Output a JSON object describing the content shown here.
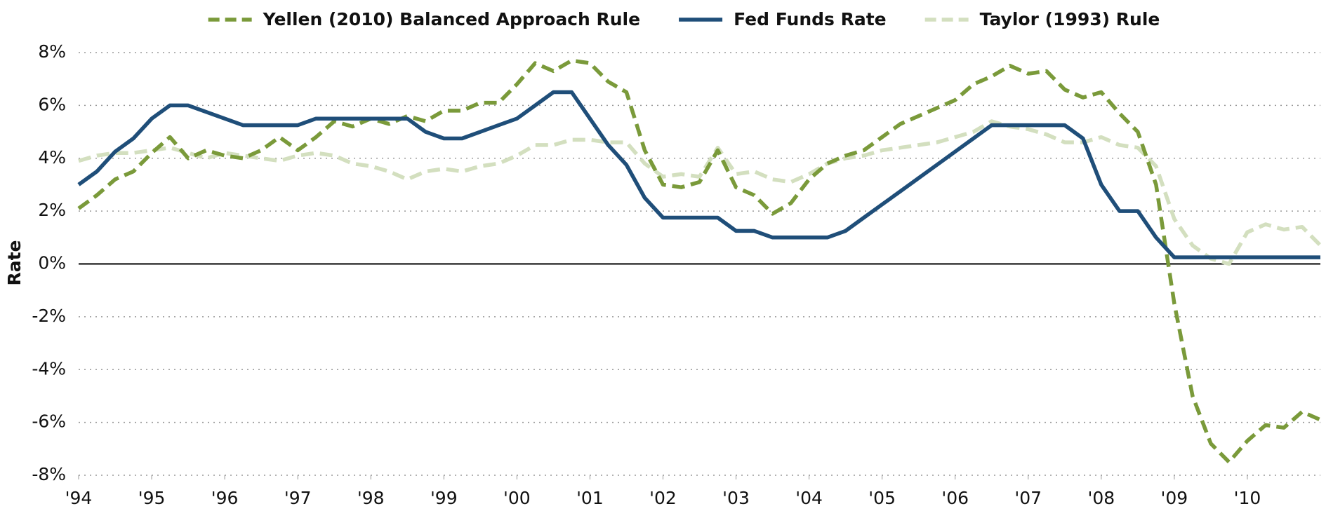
{
  "chart_data": {
    "type": "line",
    "ylabel": "Rate",
    "x": [
      1994,
      1994.25,
      1994.5,
      1994.75,
      1995,
      1995.25,
      1995.5,
      1995.75,
      1996,
      1996.25,
      1996.5,
      1996.75,
      1997,
      1997.25,
      1997.5,
      1997.75,
      1998,
      1998.25,
      1998.5,
      1998.75,
      1999,
      1999.25,
      1999.5,
      1999.75,
      2000,
      2000.25,
      2000.5,
      2000.75,
      2001,
      2001.25,
      2001.5,
      2001.75,
      2002,
      2002.25,
      2002.5,
      2002.75,
      2003,
      2003.25,
      2003.5,
      2003.75,
      2004,
      2004.25,
      2004.5,
      2004.75,
      2005,
      2005.25,
      2005.5,
      2005.75,
      2006,
      2006.25,
      2006.5,
      2006.75,
      2007,
      2007.25,
      2007.5,
      2007.75,
      2008,
      2008.25,
      2008.5,
      2008.75,
      2009,
      2009.25,
      2009.5,
      2009.75,
      2010,
      2010.25,
      2010.5,
      2010.75,
      2011
    ],
    "series": [
      {
        "name": "Yellen (2010) Balanced Approach Rule",
        "color": "#7a9a3a",
        "style": "dashed",
        "values": [
          2.1,
          2.6,
          3.2,
          3.5,
          4.2,
          4.8,
          4.0,
          4.3,
          4.1,
          4.0,
          4.3,
          4.8,
          4.3,
          4.8,
          5.4,
          5.2,
          5.5,
          5.3,
          5.6,
          5.4,
          5.8,
          5.8,
          6.1,
          6.1,
          6.8,
          7.6,
          7.3,
          7.7,
          7.6,
          6.9,
          6.5,
          4.3,
          3.0,
          2.9,
          3.1,
          4.3,
          2.9,
          2.6,
          1.9,
          2.3,
          3.2,
          3.8,
          4.1,
          4.3,
          4.8,
          5.3,
          5.6,
          5.9,
          6.2,
          6.8,
          7.1,
          7.5,
          7.2,
          7.3,
          6.6,
          6.3,
          6.5,
          5.7,
          5.0,
          3.0,
          -1.5,
          -5.0,
          -6.8,
          -7.5,
          -6.7,
          -6.1,
          -6.2,
          -5.6,
          -5.9
        ]
      },
      {
        "name": "Fed Funds Rate",
        "color": "#1f4e79",
        "style": "solid",
        "values": [
          3.0,
          3.5,
          4.25,
          4.75,
          5.5,
          6.0,
          6.0,
          5.75,
          5.5,
          5.25,
          5.25,
          5.25,
          5.25,
          5.5,
          5.5,
          5.5,
          5.5,
          5.5,
          5.5,
          5.0,
          4.75,
          4.75,
          5.0,
          5.25,
          5.5,
          6.0,
          6.5,
          6.5,
          5.5,
          4.5,
          3.75,
          2.5,
          1.75,
          1.75,
          1.75,
          1.75,
          1.25,
          1.25,
          1.0,
          1.0,
          1.0,
          1.0,
          1.25,
          1.75,
          2.25,
          2.75,
          3.25,
          3.75,
          4.25,
          4.75,
          5.25,
          5.25,
          5.25,
          5.25,
          5.25,
          4.75,
          3.0,
          2.0,
          2.0,
          1.0,
          0.25,
          0.25,
          0.25,
          0.25,
          0.25,
          0.25,
          0.25,
          0.25,
          0.25
        ]
      },
      {
        "name": "Taylor (1993) Rule",
        "color": "#d3dfbf",
        "style": "dashed",
        "values": [
          3.9,
          4.1,
          4.2,
          4.2,
          4.3,
          4.4,
          4.2,
          4.0,
          4.2,
          4.1,
          4.0,
          3.9,
          4.1,
          4.2,
          4.1,
          3.8,
          3.7,
          3.5,
          3.2,
          3.5,
          3.6,
          3.5,
          3.7,
          3.8,
          4.1,
          4.5,
          4.5,
          4.7,
          4.7,
          4.6,
          4.6,
          3.8,
          3.3,
          3.4,
          3.3,
          4.4,
          3.4,
          3.5,
          3.2,
          3.1,
          3.4,
          3.8,
          4.0,
          4.1,
          4.3,
          4.4,
          4.5,
          4.6,
          4.8,
          5.0,
          5.4,
          5.2,
          5.1,
          4.9,
          4.6,
          4.6,
          4.8,
          4.5,
          4.4,
          3.7,
          1.7,
          0.7,
          0.2,
          0.0,
          1.2,
          1.5,
          1.3,
          1.4,
          0.7
        ]
      }
    ],
    "xlim": [
      1994,
      2011
    ],
    "xticks": [
      {
        "value": 1994,
        "label": "'94"
      },
      {
        "value": 1995,
        "label": "'95"
      },
      {
        "value": 1996,
        "label": "'96"
      },
      {
        "value": 1997,
        "label": "'97"
      },
      {
        "value": 1998,
        "label": "'98"
      },
      {
        "value": 1999,
        "label": "'99"
      },
      {
        "value": 2000,
        "label": "'00"
      },
      {
        "value": 2001,
        "label": "'01"
      },
      {
        "value": 2002,
        "label": "'02"
      },
      {
        "value": 2003,
        "label": "'03"
      },
      {
        "value": 2004,
        "label": "'04"
      },
      {
        "value": 2005,
        "label": "'05"
      },
      {
        "value": 2006,
        "label": "'06"
      },
      {
        "value": 2007,
        "label": "'07"
      },
      {
        "value": 2008,
        "label": "'08"
      },
      {
        "value": 2009,
        "label": "'09"
      },
      {
        "value": 2010,
        "label": "'10"
      }
    ],
    "ylim": [
      -8,
      8
    ],
    "yticks": [
      {
        "value": -8,
        "label": "-8%"
      },
      {
        "value": -6,
        "label": "-6%"
      },
      {
        "value": -4,
        "label": "-4%"
      },
      {
        "value": -2,
        "label": "-2%"
      },
      {
        "value": 0,
        "label": "0%"
      },
      {
        "value": 2,
        "label": "2%"
      },
      {
        "value": 4,
        "label": "4%"
      },
      {
        "value": 6,
        "label": "6%"
      },
      {
        "value": 8,
        "label": "8%"
      }
    ],
    "grid": true,
    "legend": "top"
  }
}
